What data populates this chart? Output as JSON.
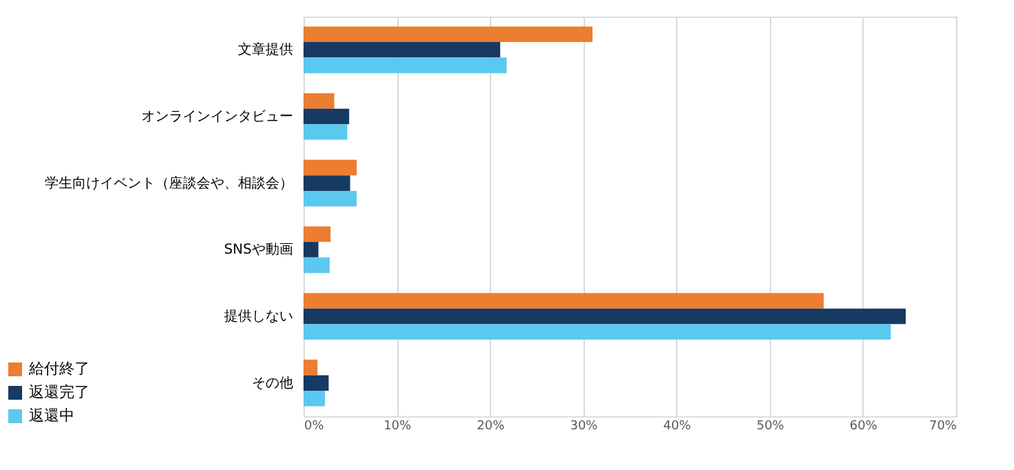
{
  "chart_data": {
    "type": "bar",
    "orientation": "horizontal",
    "categories": [
      "文章提供",
      "オンラインインタビュー",
      "学生向けイベント（座談会や、相談会）",
      "SNSや動画",
      "提供しない",
      "その他"
    ],
    "series": [
      {
        "name": "給付終了",
        "color": "#ed7d31",
        "values": [
          31.0,
          3.3,
          5.7,
          2.9,
          55.8,
          1.5
        ]
      },
      {
        "name": "返還完了",
        "color": "#173a63",
        "values": [
          21.1,
          4.9,
          5.0,
          1.6,
          64.6,
          2.7
        ]
      },
      {
        "name": "返還中",
        "color": "#5bc8ef",
        "values": [
          21.8,
          4.7,
          5.7,
          2.8,
          63.0,
          2.3
        ]
      }
    ],
    "xlim": [
      0,
      70
    ],
    "xticks": [
      {
        "value": 0,
        "label": "0%"
      },
      {
        "value": 10,
        "label": "10%"
      },
      {
        "value": 20,
        "label": "20%"
      },
      {
        "value": 30,
        "label": "30%"
      },
      {
        "value": 40,
        "label": "40%"
      },
      {
        "value": 50,
        "label": "50%"
      },
      {
        "value": 60,
        "label": "60%"
      },
      {
        "value": 70,
        "label": "70%"
      }
    ],
    "grid": "x",
    "legend": "bottom left"
  }
}
